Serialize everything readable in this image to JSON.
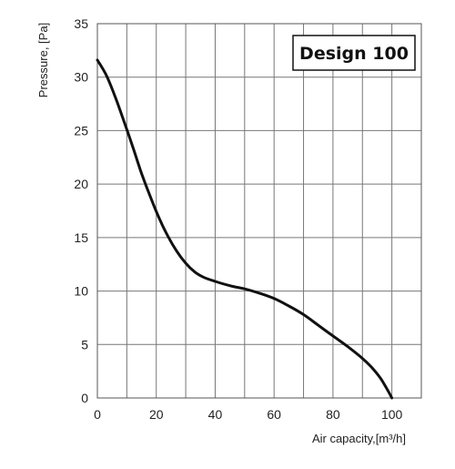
{
  "chart_data": {
    "type": "line",
    "title": "Design 100",
    "xlabel": "Air capacity,[m³/h]",
    "ylabel": "Pressure, [Pa]",
    "xlim": [
      0,
      110
    ],
    "ylim": [
      0,
      35
    ],
    "x_ticks": [
      0,
      20,
      40,
      60,
      80,
      100
    ],
    "y_ticks": [
      0,
      5,
      10,
      15,
      20,
      25,
      30,
      35
    ],
    "grid": true,
    "series": [
      {
        "color": "#111111",
        "x": [
          0,
          3,
          6,
          9,
          12,
          15,
          18,
          21,
          24,
          27,
          30,
          33,
          36,
          40,
          45,
          50,
          55,
          60,
          65,
          70,
          75,
          80,
          85,
          90,
          93,
          96,
          98,
          100
        ],
        "y": [
          31.6,
          30.2,
          28.2,
          25.9,
          23.5,
          21.0,
          18.8,
          16.8,
          15.1,
          13.7,
          12.6,
          11.8,
          11.3,
          10.9,
          10.5,
          10.2,
          9.8,
          9.3,
          8.6,
          7.8,
          6.8,
          5.8,
          4.8,
          3.7,
          2.9,
          1.9,
          1.0,
          0.0
        ]
      }
    ]
  }
}
